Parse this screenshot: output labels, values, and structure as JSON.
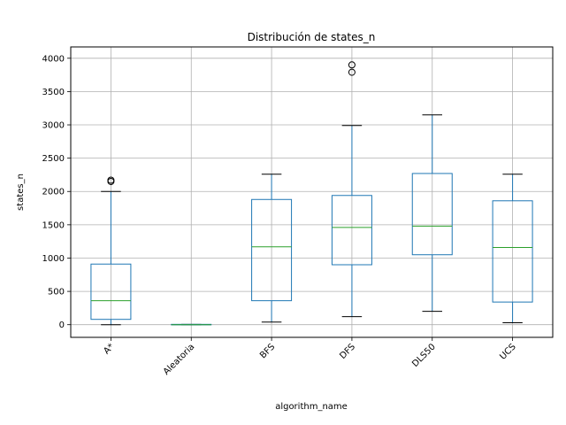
{
  "chart_data": {
    "type": "box",
    "title": "Distribución de states_n",
    "xlabel": "algorithm_name",
    "ylabel": "states_n",
    "ylim": [
      -190,
      4170
    ],
    "yticks": [
      0,
      500,
      1000,
      1500,
      2000,
      2500,
      3000,
      3500,
      4000
    ],
    "grid": true,
    "colors": {
      "box": "#1f77b4",
      "median": "#2ca02c",
      "grid": "#b0b0b0",
      "flier": "#000000"
    },
    "categories": [
      "A*",
      "Aleatoria",
      "BFS",
      "DFS",
      "DLS50",
      "UCS"
    ],
    "boxes": [
      {
        "label": "A*",
        "whislo": 0,
        "q1": 80,
        "median": 360,
        "q3": 910,
        "whishi": 2000,
        "fliers": [
          2150,
          2170
        ]
      },
      {
        "label": "Aleatoria",
        "whislo": 0,
        "q1": 0,
        "median": 0,
        "q3": 5,
        "whishi": 5,
        "fliers": []
      },
      {
        "label": "BFS",
        "whislo": 40,
        "q1": 360,
        "median": 1170,
        "q3": 1880,
        "whishi": 2260,
        "fliers": []
      },
      {
        "label": "DFS",
        "whislo": 120,
        "q1": 900,
        "median": 1460,
        "q3": 1940,
        "whishi": 2990,
        "fliers": [
          3790,
          3900
        ]
      },
      {
        "label": "DLS50",
        "whislo": 200,
        "q1": 1050,
        "median": 1480,
        "q3": 2270,
        "whishi": 3150,
        "fliers": []
      },
      {
        "label": "UCS",
        "whislo": 30,
        "q1": 340,
        "median": 1160,
        "q3": 1860,
        "whishi": 2260,
        "fliers": []
      }
    ]
  }
}
